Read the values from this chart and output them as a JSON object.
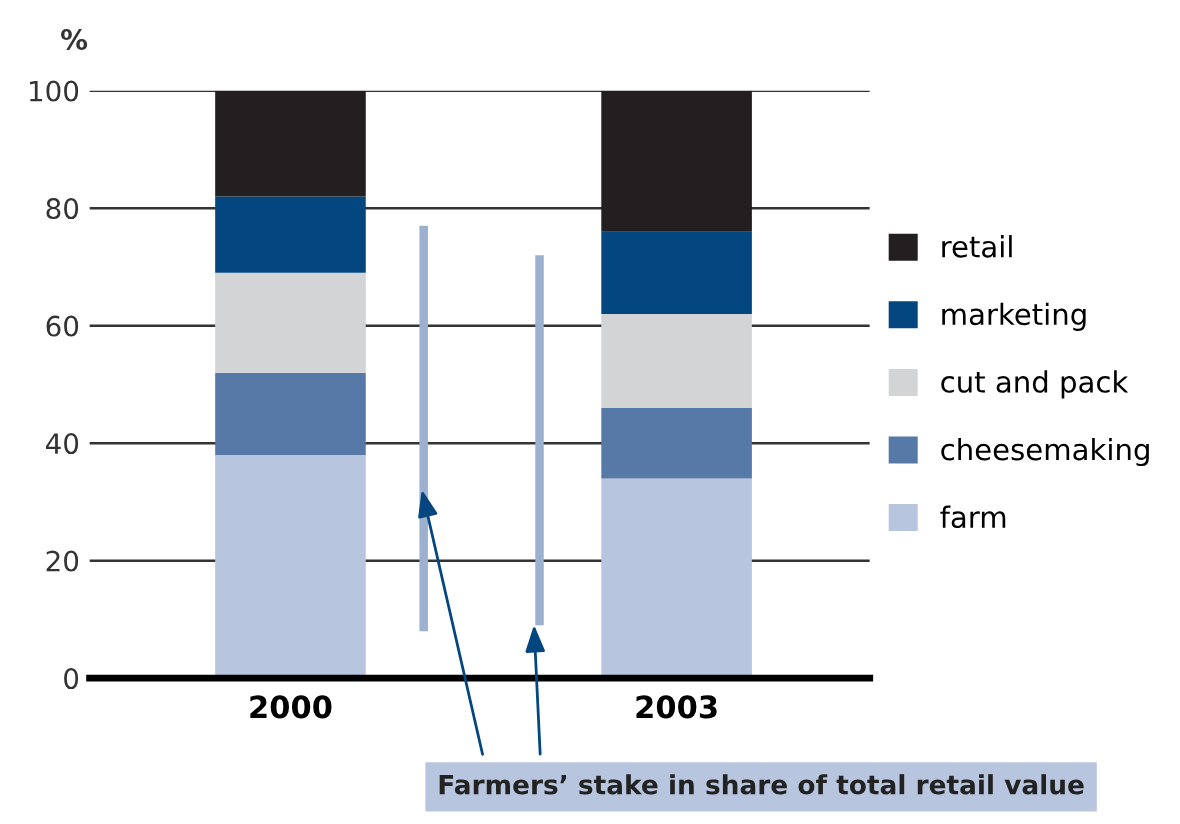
{
  "chart_data": {
    "type": "bar",
    "stacked": true,
    "ylabel": "%",
    "categories": [
      "2000",
      "2003"
    ],
    "series": [
      {
        "name": "farm",
        "color": "#b8c5de",
        "values": [
          38,
          34
        ]
      },
      {
        "name": "cheesemaking",
        "color": "#5779a8",
        "values": [
          14,
          12
        ]
      },
      {
        "name": "cut and pack",
        "color": "#d3d4d6",
        "values": [
          17,
          16
        ]
      },
      {
        "name": "marketing",
        "color": "#034680",
        "values": [
          13,
          14
        ]
      },
      {
        "name": "retail",
        "color": "#231f20",
        "values": [
          18,
          24
        ]
      }
    ],
    "ylim": [
      0,
      100
    ],
    "yticks": [
      0,
      20,
      40,
      60,
      80,
      100
    ],
    "grid": "y",
    "legend": "right",
    "annotations": [
      "Farmers’ stake in share of total retail value"
    ]
  }
}
